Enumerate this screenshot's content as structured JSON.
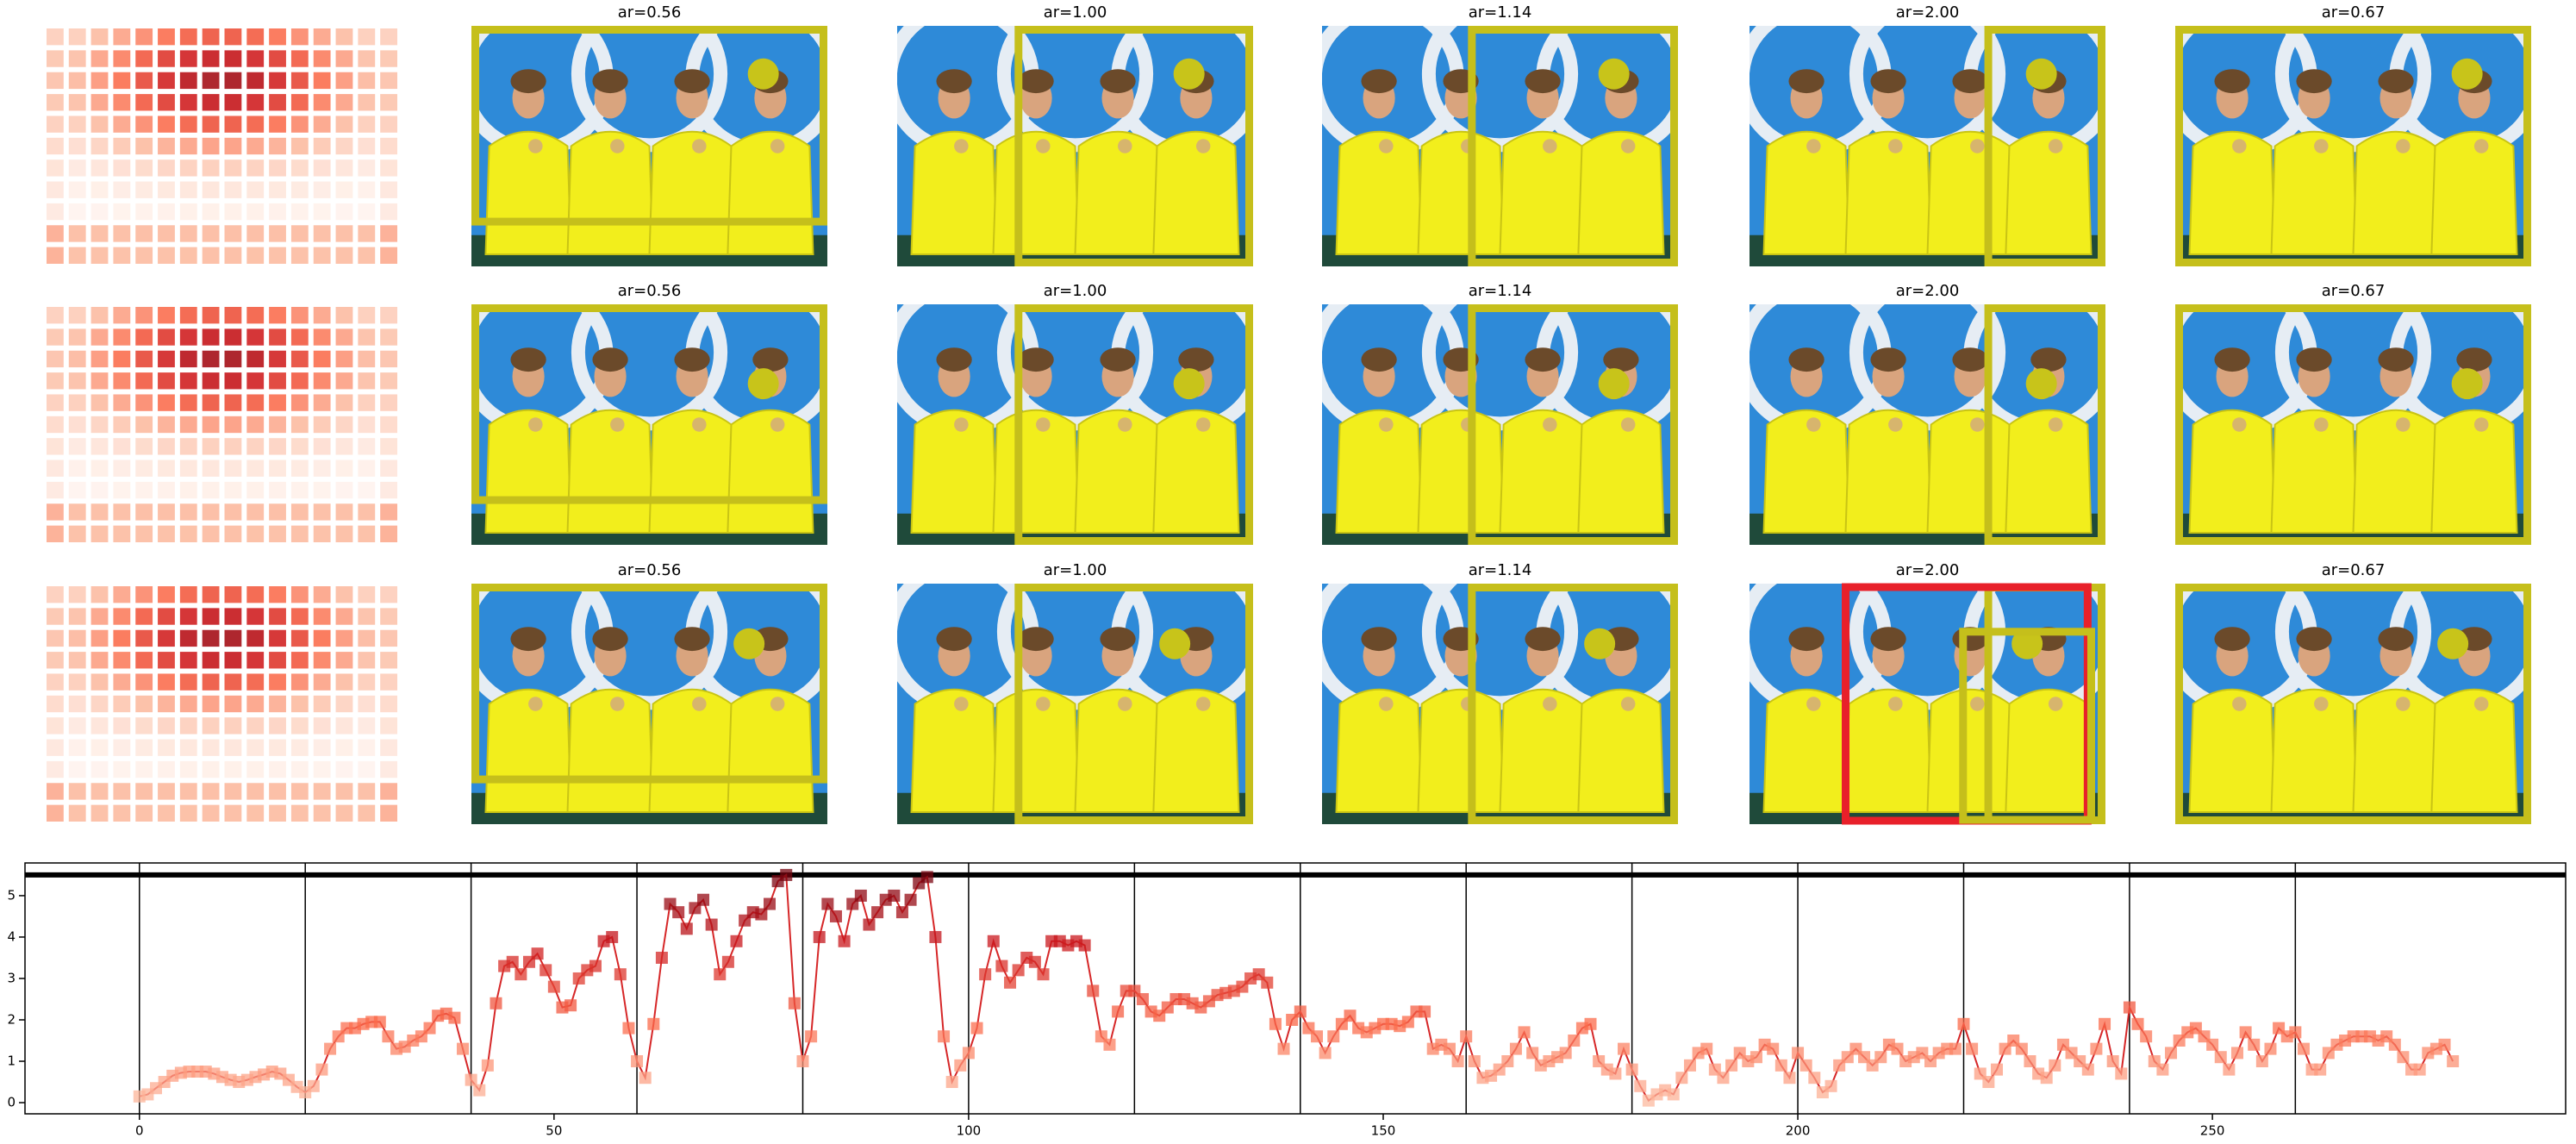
{
  "panel_titles": [
    [
      "ar=0.56",
      "ar=1.00",
      "ar=1.14",
      "ar=2.00",
      "ar=0.67"
    ],
    [
      "ar=0.56",
      "ar=1.00",
      "ar=1.14",
      "ar=2.00",
      "ar=0.67"
    ],
    [
      "ar=0.56",
      "ar=1.00",
      "ar=1.14",
      "ar=2.00",
      "ar=0.67"
    ]
  ],
  "chart_data": {
    "type": "line",
    "color": "#d62728",
    "xlim": [
      -13.8,
      292.6
    ],
    "ylim": [
      -0.27,
      5.79
    ],
    "xticks": [
      0,
      50,
      100,
      150,
      200,
      250
    ],
    "yticks": [
      0,
      1,
      2,
      3,
      4,
      5
    ],
    "vlines": [
      0,
      20,
      40,
      60,
      80,
      100,
      120,
      140,
      160,
      180,
      200,
      220,
      240,
      260
    ],
    "hline": 5.5,
    "x": [
      0,
      1,
      2,
      3,
      4,
      5,
      6,
      7,
      8,
      9,
      10,
      11,
      12,
      13,
      14,
      15,
      16,
      17,
      18,
      19,
      20,
      21,
      22,
      23,
      24,
      25,
      26,
      27,
      28,
      29,
      30,
      31,
      32,
      33,
      34,
      35,
      36,
      37,
      38,
      39,
      40,
      41,
      42,
      43,
      44,
      45,
      46,
      47,
      48,
      49,
      50,
      51,
      52,
      53,
      54,
      55,
      56,
      57,
      58,
      59,
      60,
      61,
      62,
      63,
      64,
      65,
      66,
      67,
      68,
      69,
      70,
      71,
      72,
      73,
      74,
      75,
      76,
      77,
      78,
      79,
      80,
      81,
      82,
      83,
      84,
      85,
      86,
      87,
      88,
      89,
      90,
      91,
      92,
      93,
      94,
      95,
      96,
      97,
      98,
      99,
      100,
      101,
      102,
      103,
      104,
      105,
      106,
      107,
      108,
      109,
      110,
      111,
      112,
      113,
      114,
      115,
      116,
      117,
      118,
      119,
      120,
      121,
      122,
      123,
      124,
      125,
      126,
      127,
      128,
      129,
      130,
      131,
      132,
      133,
      134,
      135,
      136,
      137,
      138,
      139,
      140,
      141,
      142,
      143,
      144,
      145,
      146,
      147,
      148,
      149,
      150,
      151,
      152,
      153,
      154,
      155,
      156,
      157,
      158,
      159,
      160,
      161,
      162,
      163,
      164,
      165,
      166,
      167,
      168,
      169,
      170,
      171,
      172,
      173,
      174,
      175,
      176,
      177,
      178,
      179,
      180,
      181,
      182,
      183,
      184,
      185,
      186,
      187,
      188,
      189,
      190,
      191,
      192,
      193,
      194,
      195,
      196,
      197,
      198,
      199,
      200,
      201,
      202,
      203,
      204,
      205,
      206,
      207,
      208,
      209,
      210,
      211,
      212,
      213,
      214,
      215,
      216,
      217,
      218,
      219,
      220,
      221,
      222,
      223,
      224,
      225,
      226,
      227,
      228,
      229,
      230,
      231,
      232,
      233,
      234,
      235,
      236,
      237,
      238,
      239,
      240,
      241,
      242,
      243,
      244,
      245,
      246,
      247,
      248,
      249,
      250,
      251,
      252,
      253,
      254,
      255,
      256,
      257,
      258,
      259,
      260,
      261,
      262,
      263,
      264,
      265,
      266,
      267,
      268,
      269,
      270,
      271,
      272,
      273,
      274,
      275,
      276,
      277,
      278,
      279
    ],
    "series": [
      {
        "values": [
          0.15,
          0.2,
          0.35,
          0.5,
          0.65,
          0.72,
          0.75,
          0.75,
          0.75,
          0.7,
          0.62,
          0.55,
          0.5,
          0.55,
          0.62,
          0.68,
          0.75,
          0.7,
          0.55,
          0.38,
          0.25,
          0.4,
          0.8,
          1.3,
          1.6,
          1.8,
          1.8,
          1.9,
          1.95,
          1.95,
          1.6,
          1.3,
          1.35,
          1.5,
          1.6,
          1.8,
          2.1,
          2.15,
          2.05,
          1.3,
          0.55,
          0.3,
          0.9,
          2.4,
          3.3,
          3.4,
          3.1,
          3.4,
          3.6,
          3.2,
          2.8,
          2.3,
          2.35,
          3.0,
          3.2,
          3.3,
          3.9,
          4.0,
          3.1,
          1.8,
          1.0,
          0.6,
          1.9,
          3.5,
          4.8,
          4.6,
          4.2,
          4.7,
          4.9,
          4.3,
          3.1,
          3.4,
          3.9,
          4.4,
          4.6,
          4.55,
          4.8,
          5.35,
          5.5,
          2.4,
          1.0,
          1.6,
          4.0,
          4.8,
          4.5,
          3.9,
          4.8,
          5.0,
          4.3,
          4.6,
          4.9,
          5.0,
          4.6,
          4.9,
          5.3,
          5.45,
          4.0,
          1.6,
          0.5,
          0.9,
          1.2,
          1.8,
          3.1,
          3.9,
          3.3,
          2.9,
          3.2,
          3.5,
          3.4,
          3.1,
          3.9,
          3.9,
          3.8,
          3.9,
          3.8,
          2.7,
          1.6,
          1.4,
          2.2,
          2.7,
          2.7,
          2.5,
          2.2,
          2.1,
          2.3,
          2.5,
          2.5,
          2.4,
          2.3,
          2.45,
          2.6,
          2.65,
          2.7,
          2.8,
          3.0,
          3.1,
          2.9,
          1.9,
          1.3,
          2.0,
          2.2,
          1.8,
          1.6,
          1.2,
          1.6,
          1.9,
          2.1,
          1.8,
          1.7,
          1.8,
          1.9,
          1.9,
          1.85,
          1.95,
          2.2,
          2.2,
          1.3,
          1.4,
          1.3,
          1.0,
          1.6,
          1.0,
          0.6,
          0.65,
          0.8,
          1.0,
          1.3,
          1.7,
          1.2,
          0.9,
          1.0,
          1.1,
          1.2,
          1.5,
          1.8,
          1.9,
          1.0,
          0.8,
          0.7,
          1.3,
          0.8,
          0.4,
          0.05,
          0.2,
          0.3,
          0.2,
          0.6,
          0.9,
          1.2,
          1.3,
          0.8,
          0.6,
          0.9,
          1.2,
          1.0,
          1.1,
          1.4,
          1.3,
          0.9,
          0.6,
          1.2,
          0.9,
          0.6,
          0.25,
          0.4,
          0.9,
          1.1,
          1.3,
          1.1,
          0.9,
          1.1,
          1.4,
          1.3,
          1.0,
          1.1,
          1.2,
          1.0,
          1.2,
          1.3,
          1.3,
          1.9,
          1.3,
          0.7,
          0.5,
          0.8,
          1.3,
          1.5,
          1.3,
          1.0,
          0.7,
          0.6,
          0.9,
          1.4,
          1.2,
          1.0,
          0.8,
          1.3,
          1.9,
          1.0,
          0.7,
          2.3,
          1.9,
          1.6,
          1.0,
          0.8,
          1.2,
          1.5,
          1.7,
          1.8,
          1.6,
          1.4,
          1.1,
          0.8,
          1.2,
          1.7,
          1.4,
          1.0,
          1.3,
          1.8,
          1.6,
          1.7,
          1.3,
          0.8,
          0.8,
          1.2,
          1.4,
          1.5,
          1.6,
          1.6,
          1.6,
          1.5,
          1.6,
          1.4,
          1.1,
          0.8,
          0.8,
          1.2,
          1.3,
          1.4,
          1.0
        ]
      }
    ]
  }
}
